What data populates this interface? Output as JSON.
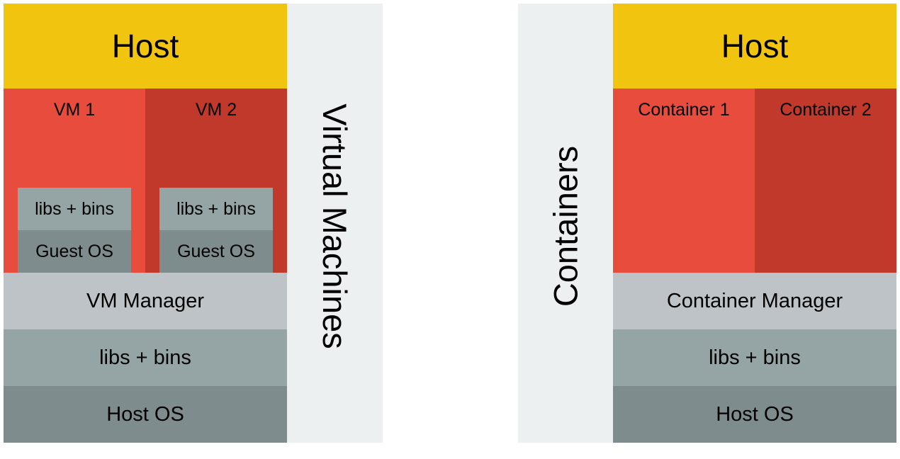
{
  "left": {
    "host": "Host",
    "vm1": {
      "label": "VM 1",
      "libs": "libs + bins",
      "guest_os": "Guest OS"
    },
    "vm2": {
      "label": "VM 2",
      "libs": "libs + bins",
      "guest_os": "Guest OS"
    },
    "manager": "VM Manager",
    "libs": "libs + bins",
    "host_os": "Host OS",
    "side_label": "Virtual Machines"
  },
  "right": {
    "host": "Host",
    "container1": "Container 1",
    "container2": "Container 2",
    "manager": "Container Manager",
    "libs": "libs + bins",
    "host_os": "Host OS",
    "side_label": "Containers"
  },
  "colors": {
    "host": "#f1c40f",
    "primary_red": "#e74c3c",
    "dark_red": "#c0392b",
    "manager": "#bdc3c7",
    "libs": "#95a5a6",
    "os": "#7f8c8d",
    "strip": "#ecf0f1"
  }
}
